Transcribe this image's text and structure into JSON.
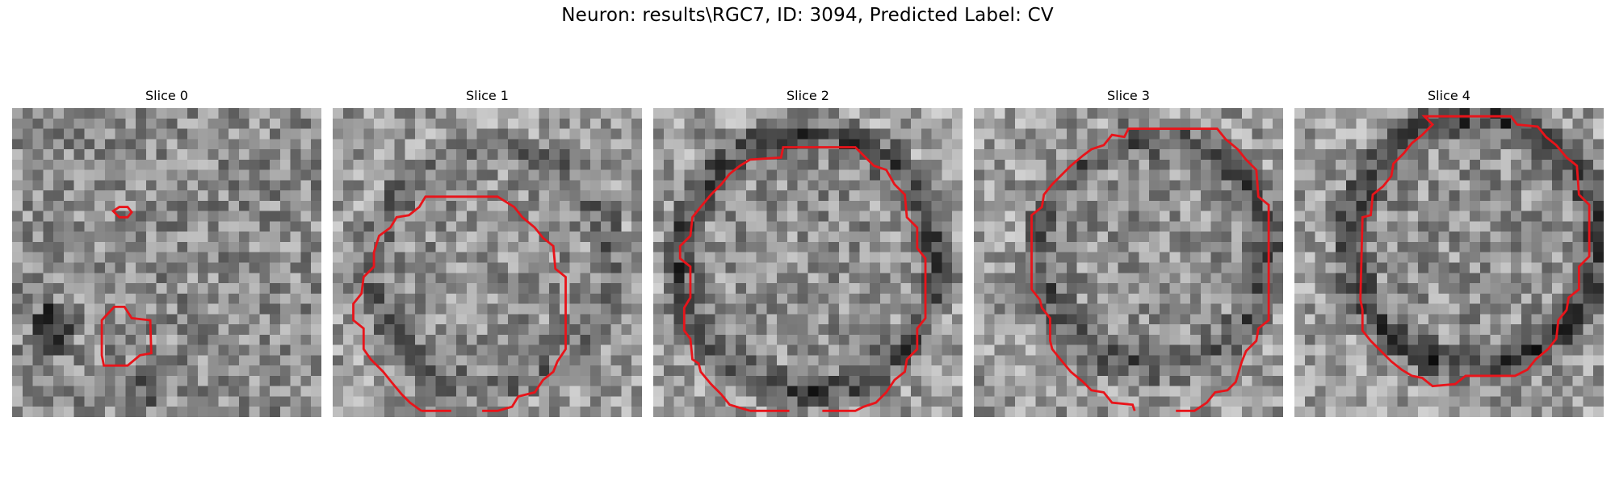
{
  "figure": {
    "title": "Neuron: results\\RGC7, ID: 3094, Predicted Label: CV"
  },
  "panels": [
    {
      "label": "Slice 0"
    },
    {
      "label": "Slice 1"
    },
    {
      "label": "Slice 2"
    },
    {
      "label": "Slice 3"
    },
    {
      "label": "Slice 4"
    }
  ],
  "colors": {
    "contour": "#e8141a",
    "background": "#ffffff"
  }
}
